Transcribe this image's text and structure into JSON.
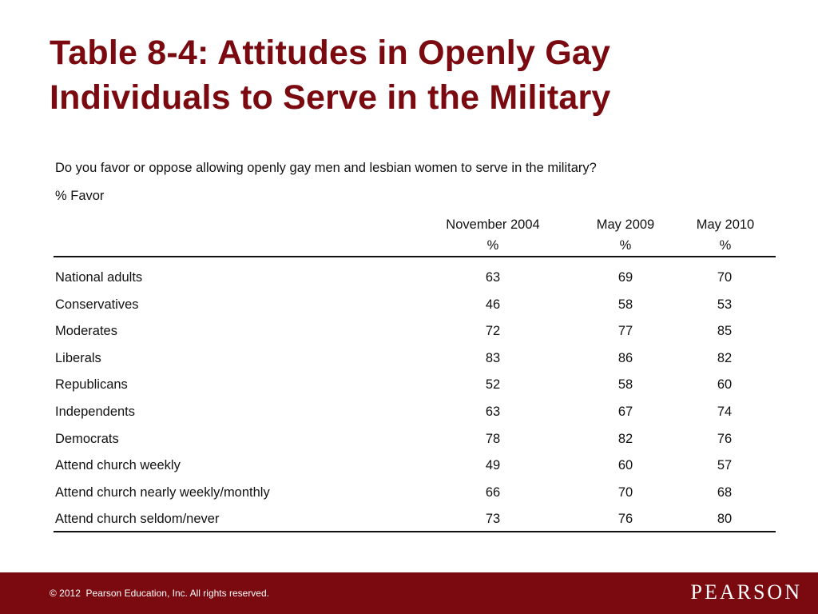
{
  "slide": {
    "title_line1": "Table 8-4: Attitudes in Openly Gay",
    "title_line2": "Individuals to Serve in the Military"
  },
  "table": {
    "question": "Do you favor or oppose allowing openly gay men and lesbian women to serve in the military?",
    "subheading": "% Favor",
    "columns": [
      {
        "label": "November 2004",
        "unit": "%"
      },
      {
        "label": "May 2009",
        "unit": "%"
      },
      {
        "label": "May 2010",
        "unit": "%"
      }
    ],
    "rows": [
      {
        "label": "National adults",
        "values": [
          "63",
          "69",
          "70"
        ]
      },
      {
        "label": "Conservatives",
        "values": [
          "46",
          "58",
          "53"
        ]
      },
      {
        "label": "Moderates",
        "values": [
          "72",
          "77",
          "85"
        ]
      },
      {
        "label": "Liberals",
        "values": [
          "83",
          "86",
          "82"
        ]
      },
      {
        "label": "Republicans",
        "values": [
          "52",
          "58",
          "60"
        ]
      },
      {
        "label": "Independents",
        "values": [
          "63",
          "67",
          "74"
        ]
      },
      {
        "label": "Democrats",
        "values": [
          "78",
          "82",
          "76"
        ]
      },
      {
        "label": "Attend church weekly",
        "values": [
          "49",
          "60",
          "57"
        ]
      },
      {
        "label": "Attend church nearly weekly/monthly",
        "values": [
          "66",
          "70",
          "68"
        ]
      },
      {
        "label": "Attend church seldom/never",
        "values": [
          "73",
          "76",
          "80"
        ]
      }
    ]
  },
  "footer": {
    "copyright": "© 2012  Pearson Education, Inc. All rights reserved.",
    "logo": "PEARSON"
  },
  "colors": {
    "accent": "#7a0a10",
    "text": "#111111",
    "footer_text": "#ffffff"
  }
}
